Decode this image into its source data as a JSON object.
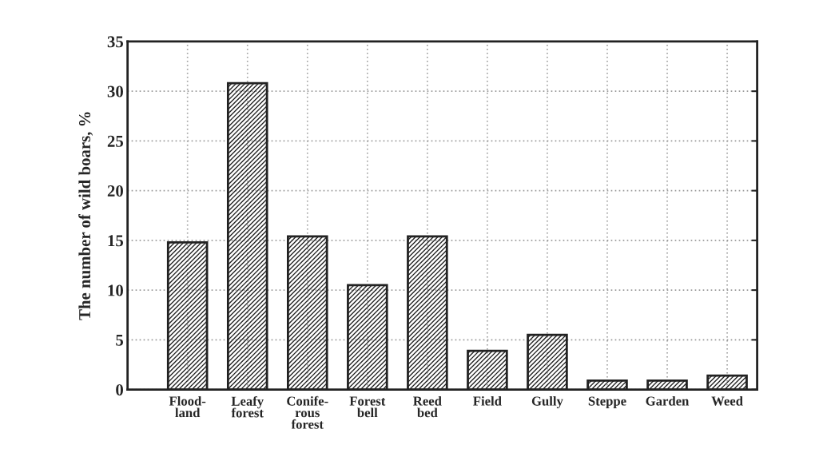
{
  "chart_data": {
    "type": "bar",
    "ylabel": "The number of wild boars, %",
    "categories": [
      "Flood-\nland",
      "Leafy\nforest",
      "Conife-\nrous\nforest",
      "Forest\nbell",
      "Reed\nbed",
      "Field",
      "Gully",
      "Steppe",
      "Garden",
      "Weed"
    ],
    "values": [
      14.8,
      30.8,
      15.4,
      10.5,
      15.4,
      3.9,
      5.5,
      0.9,
      0.9,
      1.4
    ],
    "color": "#222222",
    "ylim": [
      0,
      35
    ],
    "yticks": [
      0,
      5,
      10,
      15,
      20,
      25,
      30,
      35
    ],
    "grid": true
  }
}
